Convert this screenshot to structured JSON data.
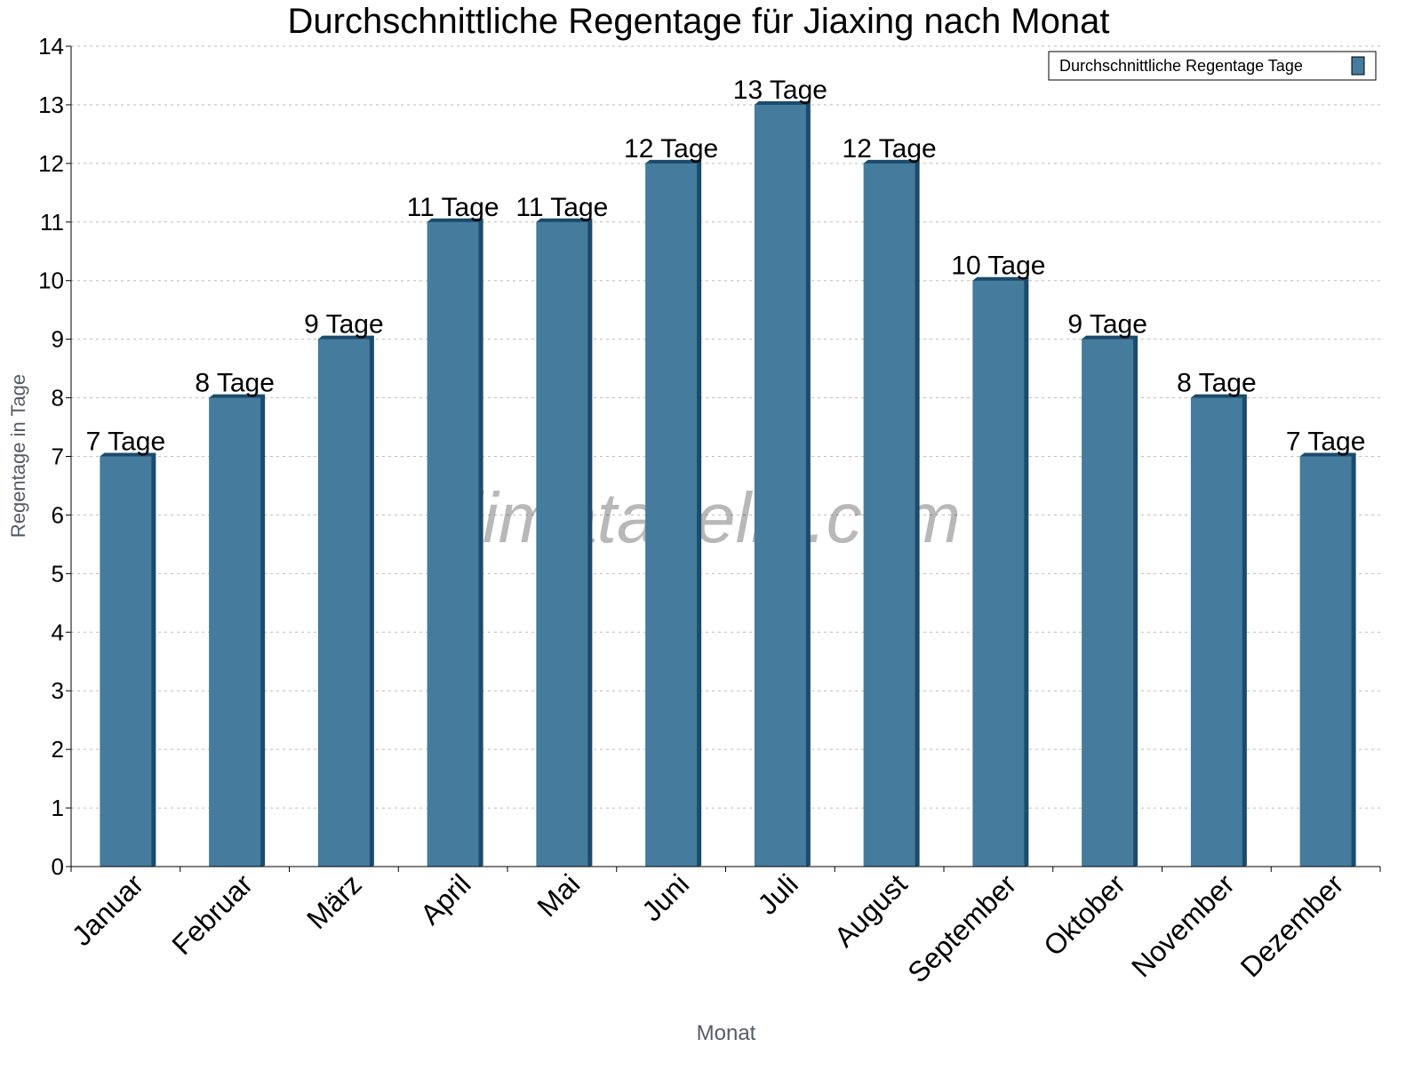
{
  "chart_data": {
    "type": "bar",
    "title": "Durchschnittliche Regentage für Jiaxing nach Monat",
    "xlabel": "Monat",
    "ylabel": "Regentage in Tage",
    "categories": [
      "Januar",
      "Februar",
      "März",
      "April",
      "Mai",
      "Juni",
      "Juli",
      "August",
      "September",
      "Oktober",
      "November",
      "Dezember"
    ],
    "series": [
      {
        "name": "Durchschnittliche Regentage Tage",
        "values": [
          7,
          8,
          9,
          11,
          11,
          12,
          13,
          12,
          10,
          9,
          8,
          7
        ],
        "color": "#457b9d",
        "edge_color": "#1b4b6c"
      }
    ],
    "data_labels": [
      "7 Tage",
      "8 Tage",
      "9 Tage",
      "11 Tage",
      "11 Tage",
      "12 Tage",
      "13 Tage",
      "12 Tage",
      "10 Tage",
      "9 Tage",
      "8 Tage",
      "7 Tage"
    ],
    "ylim": [
      0,
      14
    ],
    "yticks": [
      "0",
      "1",
      "2",
      "3",
      "4",
      "5",
      "6",
      "7",
      "8",
      "9",
      "10",
      "11",
      "12",
      "13",
      "14"
    ],
    "grid": true,
    "legend_position": "top-right",
    "watermark": "klimatabelle.com"
  }
}
